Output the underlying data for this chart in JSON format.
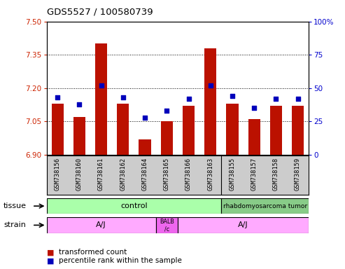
{
  "title": "GDS5527 / 100580739",
  "samples": [
    "GSM738156",
    "GSM738160",
    "GSM738161",
    "GSM738162",
    "GSM738164",
    "GSM738165",
    "GSM738166",
    "GSM738163",
    "GSM738155",
    "GSM738157",
    "GSM738158",
    "GSM738159"
  ],
  "red_values": [
    7.13,
    7.07,
    7.4,
    7.13,
    6.97,
    7.05,
    7.12,
    7.38,
    7.13,
    7.06,
    7.12,
    7.12
  ],
  "blue_values": [
    43,
    38,
    52,
    43,
    28,
    33,
    42,
    52,
    44,
    35,
    42,
    42
  ],
  "ylim_left": [
    6.9,
    7.5
  ],
  "ylim_right": [
    0,
    100
  ],
  "yticks_left": [
    6.9,
    7.05,
    7.2,
    7.35,
    7.5
  ],
  "yticks_right": [
    0,
    25,
    50,
    75,
    100
  ],
  "bar_color": "#bb1100",
  "dot_color": "#0000bb",
  "tissue_control_color": "#aaffaa",
  "tissue_tumor_color": "#88cc88",
  "strain_aj_color": "#ffaaff",
  "strain_balb_color": "#ee66ee",
  "label_bg_color": "#cccccc",
  "bar_width": 0.55,
  "base_value": 6.9,
  "control_count": 8,
  "tumor_count": 4,
  "aj1_count": 5,
  "balb_count": 1,
  "aj2_count": 6
}
